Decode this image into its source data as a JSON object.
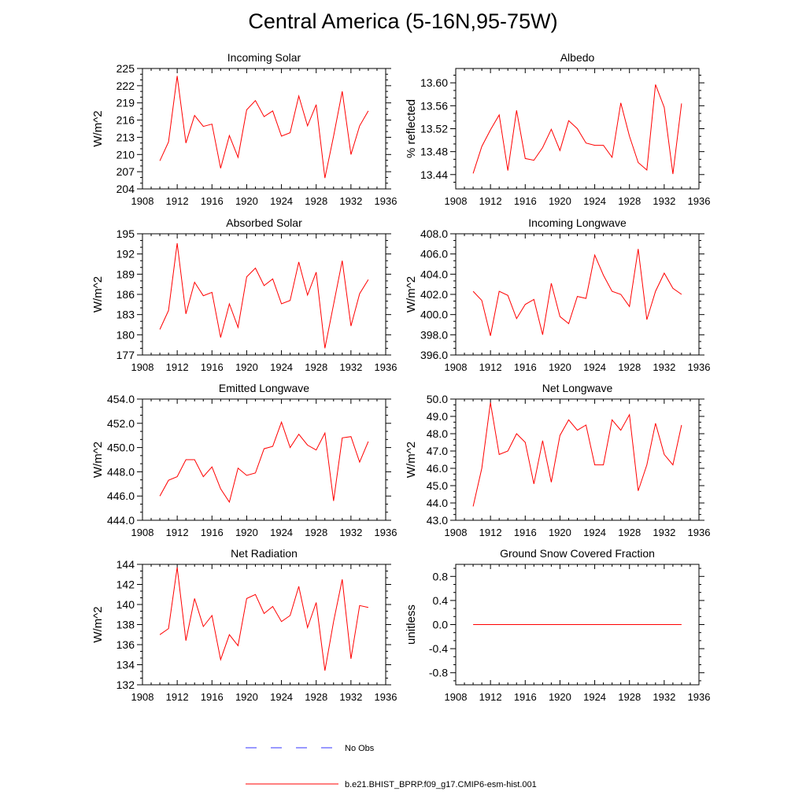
{
  "title": "Central America (5-16N,95-75W)",
  "legend": {
    "entries": [
      {
        "label": "No Obs",
        "color": "#3333ff",
        "style": "dashed"
      },
      {
        "label": "b.e21.BHIST_BPRP.f09_g17.CMIP6-esm-hist.001",
        "color": "#ff0000",
        "style": "solid"
      }
    ]
  },
  "chart_data": [
    {
      "type": "line",
      "title": "Incoming Solar",
      "ylabel": "W/m^2",
      "xlim": [
        1908,
        1936
      ],
      "xticks": [
        1908,
        1912,
        1916,
        1920,
        1924,
        1928,
        1932,
        1936
      ],
      "ylim": [
        204,
        225
      ],
      "yticks": [
        "204",
        "207",
        "210",
        "213",
        "216",
        "219",
        "222",
        "225"
      ],
      "color": "#ff0000",
      "x": [
        1910,
        1911,
        1912,
        1913,
        1914,
        1915,
        1916,
        1917,
        1918,
        1919,
        1920,
        1921,
        1922,
        1923,
        1924,
        1925,
        1926,
        1927,
        1928,
        1929,
        1930,
        1931,
        1932,
        1933,
        1934
      ],
      "values": [
        208.9,
        212.2,
        223.7,
        212.0,
        216.8,
        214.9,
        215.3,
        207.6,
        213.3,
        209.5,
        217.8,
        219.4,
        216.6,
        217.6,
        213.2,
        213.8,
        220.2,
        215.0,
        218.7,
        205.9,
        213.2,
        221.0,
        210.0,
        215.0,
        217.6
      ]
    },
    {
      "type": "line",
      "title": "Albedo",
      "ylabel": "% reflected",
      "xlim": [
        1908,
        1936
      ],
      "xticks": [
        1908,
        1912,
        1916,
        1920,
        1924,
        1928,
        1932,
        1936
      ],
      "ylim": [
        13.415,
        13.625
      ],
      "yticks": [
        "13.44",
        "13.48",
        "13.52",
        "13.56",
        "13.60"
      ],
      "color": "#ff0000",
      "x": [
        1910,
        1911,
        1912,
        1913,
        1914,
        1915,
        1916,
        1917,
        1918,
        1919,
        1920,
        1921,
        1922,
        1923,
        1924,
        1925,
        1926,
        1927,
        1928,
        1929,
        1930,
        1931,
        1932,
        1933,
        1934
      ],
      "values": [
        13.442,
        13.489,
        13.518,
        13.544,
        13.447,
        13.552,
        13.468,
        13.465,
        13.487,
        13.519,
        13.482,
        13.534,
        13.52,
        13.495,
        13.491,
        13.491,
        13.47,
        13.565,
        13.507,
        13.461,
        13.448,
        13.597,
        13.557,
        13.441,
        13.564
      ]
    },
    {
      "type": "line",
      "title": "Absorbed Solar",
      "ylabel": "W/m^2",
      "xlim": [
        1908,
        1936
      ],
      "xticks": [
        1908,
        1912,
        1916,
        1920,
        1924,
        1928,
        1932,
        1936
      ],
      "ylim": [
        177,
        195
      ],
      "yticks": [
        "177",
        "180",
        "183",
        "186",
        "189",
        "192",
        "195"
      ],
      "color": "#ff0000",
      "x": [
        1910,
        1911,
        1912,
        1913,
        1914,
        1915,
        1916,
        1917,
        1918,
        1919,
        1920,
        1921,
        1922,
        1923,
        1924,
        1925,
        1926,
        1927,
        1928,
        1929,
        1930,
        1931,
        1932,
        1933,
        1934
      ],
      "values": [
        180.8,
        183.6,
        193.6,
        183.1,
        187.8,
        185.8,
        186.3,
        179.6,
        184.6,
        181.1,
        188.6,
        189.9,
        187.3,
        188.3,
        184.6,
        185.1,
        190.8,
        185.9,
        189.3,
        178.0,
        184.5,
        191.0,
        181.3,
        186.1,
        188.2
      ]
    },
    {
      "type": "line",
      "title": "Incoming Longwave",
      "ylabel": "W/m^2",
      "xlim": [
        1908,
        1936
      ],
      "xticks": [
        1908,
        1912,
        1916,
        1920,
        1924,
        1928,
        1932,
        1936
      ],
      "ylim": [
        396,
        408
      ],
      "yticks": [
        "396.0",
        "398.0",
        "400.0",
        "402.0",
        "404.0",
        "406.0",
        "408.0"
      ],
      "color": "#ff0000",
      "x": [
        1910,
        1911,
        1912,
        1913,
        1914,
        1915,
        1916,
        1917,
        1918,
        1919,
        1920,
        1921,
        1922,
        1923,
        1924,
        1925,
        1926,
        1927,
        1928,
        1929,
        1930,
        1931,
        1932,
        1933,
        1934
      ],
      "values": [
        402.3,
        401.4,
        397.9,
        402.3,
        401.9,
        399.6,
        401.0,
        401.5,
        398.0,
        403.1,
        399.8,
        399.1,
        401.8,
        401.6,
        405.9,
        403.9,
        402.3,
        402.0,
        400.8,
        406.5,
        399.5,
        402.3,
        404.1,
        402.6,
        402.0
      ]
    },
    {
      "type": "line",
      "title": "Emitted Longwave",
      "ylabel": "W/m^2",
      "xlim": [
        1908,
        1936
      ],
      "xticks": [
        1908,
        1912,
        1916,
        1920,
        1924,
        1928,
        1932,
        1936
      ],
      "ylim": [
        444,
        454
      ],
      "yticks": [
        "444.0",
        "446.0",
        "448.0",
        "450.0",
        "452.0",
        "454.0"
      ],
      "color": "#ff0000",
      "x": [
        1910,
        1911,
        1912,
        1913,
        1914,
        1915,
        1916,
        1917,
        1918,
        1919,
        1920,
        1921,
        1922,
        1923,
        1924,
        1925,
        1926,
        1927,
        1928,
        1929,
        1930,
        1931,
        1932,
        1933,
        1934
      ],
      "values": [
        446.0,
        447.3,
        447.6,
        449.0,
        449.0,
        447.6,
        448.4,
        446.6,
        445.5,
        448.3,
        447.7,
        447.9,
        449.9,
        450.1,
        452.1,
        450.0,
        451.1,
        450.2,
        449.8,
        451.2,
        445.6,
        450.8,
        450.9,
        448.8,
        450.5
      ]
    },
    {
      "type": "line",
      "title": "Net Longwave",
      "ylabel": "W/m^2",
      "xlim": [
        1908,
        1936
      ],
      "xticks": [
        1908,
        1912,
        1916,
        1920,
        1924,
        1928,
        1932,
        1936
      ],
      "ylim": [
        43,
        50
      ],
      "yticks": [
        "43.0",
        "44.0",
        "45.0",
        "46.0",
        "47.0",
        "48.0",
        "49.0",
        "50.0"
      ],
      "color": "#ff0000",
      "x": [
        1910,
        1911,
        1912,
        1913,
        1914,
        1915,
        1916,
        1917,
        1918,
        1919,
        1920,
        1921,
        1922,
        1923,
        1924,
        1925,
        1926,
        1927,
        1928,
        1929,
        1930,
        1931,
        1932,
        1933,
        1934
      ],
      "values": [
        43.8,
        46.0,
        49.8,
        46.8,
        47.0,
        48.0,
        47.5,
        45.1,
        47.6,
        45.2,
        47.9,
        48.8,
        48.2,
        48.5,
        46.2,
        46.2,
        48.8,
        48.2,
        49.1,
        44.7,
        46.2,
        48.6,
        46.8,
        46.2,
        48.5
      ]
    },
    {
      "type": "line",
      "title": "Net Radiation",
      "ylabel": "W/m^2",
      "xlim": [
        1908,
        1936
      ],
      "xticks": [
        1908,
        1912,
        1916,
        1920,
        1924,
        1928,
        1932,
        1936
      ],
      "ylim": [
        132,
        144
      ],
      "yticks": [
        "132",
        "134",
        "136",
        "138",
        "140",
        "142",
        "144"
      ],
      "color": "#ff0000",
      "x": [
        1910,
        1911,
        1912,
        1913,
        1914,
        1915,
        1916,
        1917,
        1918,
        1919,
        1920,
        1921,
        1922,
        1923,
        1924,
        1925,
        1926,
        1927,
        1928,
        1929,
        1930,
        1931,
        1932,
        1933,
        1934
      ],
      "values": [
        137.0,
        137.6,
        143.7,
        136.4,
        140.6,
        137.8,
        138.9,
        134.5,
        137.0,
        135.9,
        140.6,
        141.0,
        139.1,
        139.8,
        138.3,
        138.9,
        141.8,
        137.7,
        140.2,
        133.4,
        138.3,
        142.5,
        134.6,
        139.9,
        139.7
      ]
    },
    {
      "type": "line",
      "title": "Ground Snow Covered Fraction",
      "ylabel": "unitless",
      "xlim": [
        1908,
        1936
      ],
      "xticks": [
        1908,
        1912,
        1916,
        1920,
        1924,
        1928,
        1932,
        1936
      ],
      "ylim": [
        -1.0,
        1.0
      ],
      "yticks": [
        "-0.8",
        "-0.4",
        "0.0",
        "0.4",
        "0.8"
      ],
      "color": "#ff0000",
      "x": [
        1910,
        1911,
        1912,
        1913,
        1914,
        1915,
        1916,
        1917,
        1918,
        1919,
        1920,
        1921,
        1922,
        1923,
        1924,
        1925,
        1926,
        1927,
        1928,
        1929,
        1930,
        1931,
        1932,
        1933,
        1934
      ],
      "values": [
        0,
        0,
        0,
        0,
        0,
        0,
        0,
        0,
        0,
        0,
        0,
        0,
        0,
        0,
        0,
        0,
        0,
        0,
        0,
        0,
        0,
        0,
        0,
        0,
        0
      ]
    }
  ]
}
